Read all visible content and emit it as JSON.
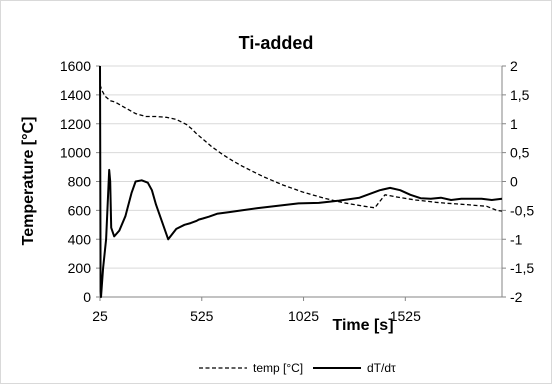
{
  "chart_data": {
    "type": "line",
    "title": "Ti-added",
    "xlabel": "Time [s]",
    "ylabel": "Temperature [°C]",
    "y2label": "",
    "xlim": [
      25,
      2000
    ],
    "ylim": [
      0,
      1600
    ],
    "y2lim": [
      -2,
      2
    ],
    "x_ticks": [
      25,
      525,
      1025,
      1525
    ],
    "y_ticks": [
      0,
      200,
      400,
      600,
      800,
      1000,
      1200,
      1400,
      1600
    ],
    "y2_ticks": [
      "-2",
      "-1,5",
      "-1",
      "-0,5",
      "0",
      "0,5",
      "1",
      "1,5",
      "2"
    ],
    "y2_tick_values": [
      -2,
      -1.5,
      -1,
      -0.5,
      0,
      0.5,
      1,
      1.5,
      2
    ],
    "grid": "horizontal",
    "legend_position": "bottom",
    "series": [
      {
        "name": "temp [°C]",
        "axis": "left",
        "style": "dashed",
        "x": [
          25,
          35,
          50,
          75,
          100,
          150,
          200,
          250,
          300,
          350,
          400,
          450,
          475,
          500,
          525,
          575,
          625,
          675,
          725,
          775,
          825,
          875,
          925,
          975,
          1025,
          1075,
          1125,
          1175,
          1225,
          1275,
          1325,
          1375,
          1425,
          1475,
          1525,
          1575,
          1625,
          1675,
          1725,
          1775,
          1825,
          1875,
          1925,
          1975,
          2000
        ],
        "values": [
          1470,
          1430,
          1390,
          1360,
          1350,
          1310,
          1270,
          1250,
          1250,
          1245,
          1230,
          1195,
          1165,
          1130,
          1100,
          1040,
          990,
          945,
          905,
          870,
          835,
          805,
          775,
          750,
          725,
          705,
          685,
          668,
          652,
          640,
          628,
          618,
          708,
          695,
          683,
          672,
          664,
          656,
          650,
          645,
          640,
          634,
          628,
          600,
          595
        ]
      },
      {
        "name": "dT/dτ",
        "axis": "right",
        "style": "solid",
        "x": [
          25,
          28,
          30,
          40,
          55,
          70,
          75,
          80,
          95,
          120,
          150,
          180,
          200,
          230,
          260,
          280,
          300,
          330,
          360,
          400,
          440,
          470,
          500,
          510,
          530,
          560,
          600,
          660,
          720,
          800,
          900,
          1000,
          1100,
          1200,
          1300,
          1400,
          1450,
          1500,
          1550,
          1600,
          1650,
          1700,
          1750,
          1800,
          1850,
          1900,
          1950,
          2000
        ],
        "values": [
          2.0,
          -1.9,
          -2.0,
          -1.5,
          -1.0,
          0.2,
          0.0,
          -0.8,
          -0.95,
          -0.85,
          -0.6,
          -0.2,
          0.0,
          0.02,
          -0.02,
          -0.15,
          -0.4,
          -0.7,
          -1.0,
          -0.82,
          -0.75,
          -0.72,
          -0.68,
          -0.66,
          -0.64,
          -0.61,
          -0.56,
          -0.53,
          -0.5,
          -0.46,
          -0.42,
          -0.38,
          -0.37,
          -0.33,
          -0.28,
          -0.15,
          -0.11,
          -0.15,
          -0.23,
          -0.29,
          -0.3,
          -0.28,
          -0.32,
          -0.3,
          -0.3,
          -0.3,
          -0.32,
          -0.3
        ]
      }
    ]
  }
}
